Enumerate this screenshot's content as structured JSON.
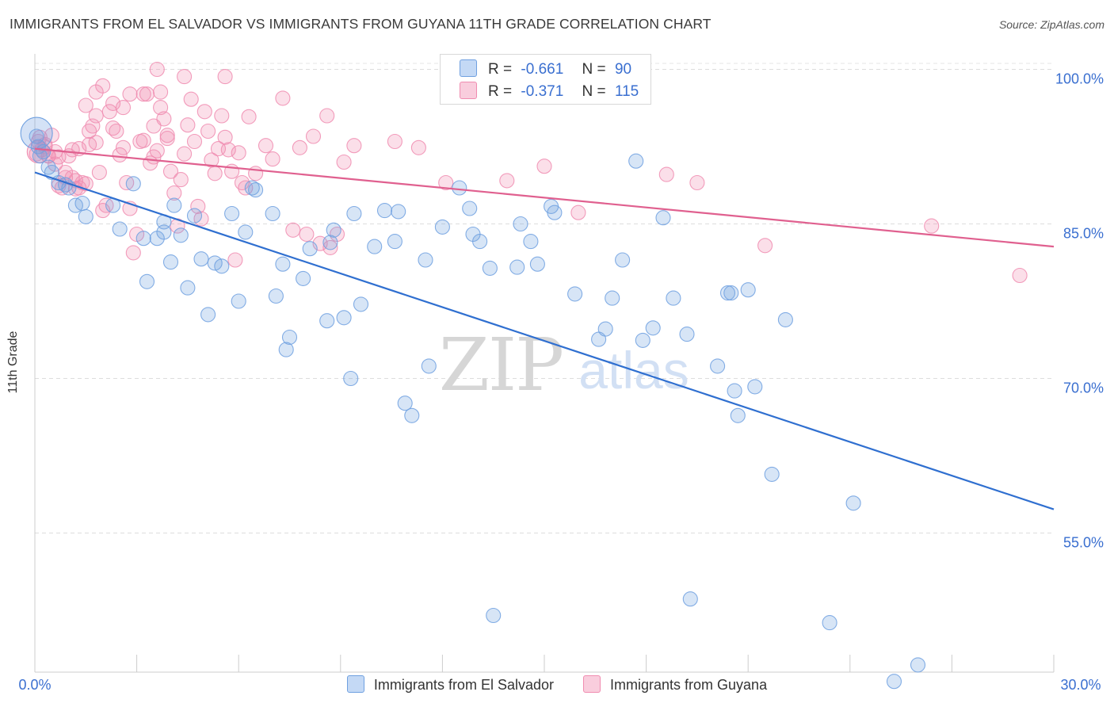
{
  "title": "IMMIGRANTS FROM EL SALVADOR VS IMMIGRANTS FROM GUYANA 11TH GRADE CORRELATION CHART",
  "source": "Source: ZipAtlas.com",
  "watermark": {
    "zip": "ZIP",
    "atlas": "atlas"
  },
  "legend": {
    "r_label": "R =",
    "n_label": "N =",
    "rows": [
      {
        "r": "-0.661",
        "n": "90",
        "color": "#6fa0e0"
      },
      {
        "r": "-0.371",
        "n": "115",
        "color": "#f08cb0"
      }
    ]
  },
  "bottom_legend": [
    "Immigrants from El Salvador",
    "Immigrants from Guyana"
  ],
  "colors": {
    "blue": "#6fa0e0",
    "blue_line": "#2f6fd0",
    "pink": "#f08cb0",
    "pink_line": "#e0608f",
    "axis_text": "#3a6fd0"
  },
  "chart_data": {
    "type": "scatter",
    "title": "IMMIGRANTS FROM EL SALVADOR VS IMMIGRANTS FROM GUYANA 11TH GRADE CORRELATION CHART",
    "xlabel": "",
    "ylabel": "11th Grade",
    "xlim": [
      0,
      30
    ],
    "ylim": [
      41.5,
      101.5
    ],
    "x_tick_labels": [
      "0.0%",
      "30.0%"
    ],
    "y_ticks": [
      55,
      70,
      85,
      100
    ],
    "y_tick_labels": [
      "55.0%",
      "70.0%",
      "85.0%",
      "100.0%"
    ],
    "grid": "horizontal dashed",
    "legend_position": "top-center",
    "series": [
      {
        "name": "Immigrants from El Salvador",
        "r": -0.661,
        "n": 90,
        "trend": [
          [
            0,
            90.0
          ],
          [
            30,
            57.3
          ]
        ],
        "points": [
          [
            0.05,
            93.5
          ],
          [
            0.1,
            92.5
          ],
          [
            0.15,
            91.6
          ],
          [
            0.25,
            92.0
          ],
          [
            0.4,
            90.5
          ],
          [
            0.5,
            90.0
          ],
          [
            0.7,
            89.0
          ],
          [
            0.9,
            88.8
          ],
          [
            1.0,
            88.5
          ],
          [
            1.2,
            86.8
          ],
          [
            1.4,
            87.0
          ],
          [
            1.5,
            85.7
          ],
          [
            2.3,
            86.8
          ],
          [
            2.5,
            84.5
          ],
          [
            2.9,
            88.9
          ],
          [
            3.6,
            83.6
          ],
          [
            3.2,
            83.6
          ],
          [
            3.3,
            79.4
          ],
          [
            3.8,
            84.2
          ],
          [
            3.8,
            85.2
          ],
          [
            4.0,
            81.3
          ],
          [
            4.1,
            86.8
          ],
          [
            4.3,
            83.9
          ],
          [
            4.5,
            78.8
          ],
          [
            4.7,
            85.8
          ],
          [
            4.9,
            81.6
          ],
          [
            5.1,
            76.2
          ],
          [
            5.3,
            81.2
          ],
          [
            5.5,
            80.9
          ],
          [
            5.8,
            86.0
          ],
          [
            6.0,
            77.5
          ],
          [
            6.2,
            84.2
          ],
          [
            6.4,
            88.5
          ],
          [
            6.5,
            88.3
          ],
          [
            7.0,
            86.0
          ],
          [
            7.1,
            78.0
          ],
          [
            7.3,
            81.1
          ],
          [
            7.4,
            72.8
          ],
          [
            7.5,
            74.0
          ],
          [
            7.9,
            79.7
          ],
          [
            8.1,
            82.6
          ],
          [
            8.6,
            75.6
          ],
          [
            8.8,
            84.4
          ],
          [
            8.7,
            83.2
          ],
          [
            9.1,
            75.9
          ],
          [
            9.3,
            70.0
          ],
          [
            9.4,
            86.0
          ],
          [
            9.6,
            77.2
          ],
          [
            10.0,
            82.8
          ],
          [
            10.3,
            86.3
          ],
          [
            10.6,
            83.3
          ],
          [
            10.7,
            86.2
          ],
          [
            10.9,
            67.6
          ],
          [
            11.1,
            66.4
          ],
          [
            11.5,
            81.5
          ],
          [
            11.6,
            71.2
          ],
          [
            12.0,
            84.7
          ],
          [
            12.5,
            88.5
          ],
          [
            12.8,
            86.5
          ],
          [
            12.9,
            84.0
          ],
          [
            13.1,
            83.3
          ],
          [
            13.4,
            80.7
          ],
          [
            13.5,
            47.0
          ],
          [
            14.2,
            80.8
          ],
          [
            14.3,
            85.0
          ],
          [
            14.6,
            83.3
          ],
          [
            14.8,
            81.1
          ],
          [
            15.2,
            86.7
          ],
          [
            15.3,
            86.1
          ],
          [
            15.9,
            78.2
          ],
          [
            16.6,
            73.8
          ],
          [
            16.8,
            74.8
          ],
          [
            17.0,
            77.8
          ],
          [
            17.3,
            81.5
          ],
          [
            17.7,
            91.1
          ],
          [
            17.9,
            73.7
          ],
          [
            18.2,
            74.9
          ],
          [
            18.5,
            85.6
          ],
          [
            18.8,
            77.8
          ],
          [
            19.2,
            74.3
          ],
          [
            19.3,
            48.6
          ],
          [
            20.1,
            71.2
          ],
          [
            20.4,
            78.3
          ],
          [
            20.5,
            78.3
          ],
          [
            20.6,
            68.8
          ],
          [
            20.7,
            66.4
          ],
          [
            21.0,
            78.6
          ],
          [
            21.2,
            69.2
          ],
          [
            21.7,
            60.7
          ],
          [
            22.1,
            75.7
          ],
          [
            23.4,
            46.3
          ],
          [
            24.1,
            57.9
          ],
          [
            25.3,
            40.6
          ],
          [
            26.0,
            42.2
          ]
        ]
      },
      {
        "name": "Immigrants from Guyana",
        "r": -0.371,
        "n": 115,
        "trend": [
          [
            0,
            92.3
          ],
          [
            30,
            82.8
          ]
        ],
        "points": [
          [
            0.05,
            91.8
          ],
          [
            0.1,
            93.0
          ],
          [
            0.15,
            93.4
          ],
          [
            0.2,
            92.2
          ],
          [
            0.3,
            92.7
          ],
          [
            0.4,
            91.6
          ],
          [
            0.5,
            93.6
          ],
          [
            0.6,
            90.8
          ],
          [
            0.7,
            91.5
          ],
          [
            0.8,
            88.5
          ],
          [
            0.9,
            89.5
          ],
          [
            1.0,
            91.6
          ],
          [
            1.1,
            92.2
          ],
          [
            1.2,
            89.2
          ],
          [
            1.3,
            88.5
          ],
          [
            1.4,
            89.0
          ],
          [
            1.5,
            88.9
          ],
          [
            1.6,
            94.0
          ],
          [
            1.7,
            94.5
          ],
          [
            1.8,
            92.9
          ],
          [
            1.9,
            90.0
          ],
          [
            2.0,
            86.3
          ],
          [
            2.1,
            86.8
          ],
          [
            2.2,
            95.9
          ],
          [
            2.3,
            96.7
          ],
          [
            2.4,
            94.0
          ],
          [
            2.5,
            91.7
          ],
          [
            2.6,
            92.4
          ],
          [
            2.7,
            89.0
          ],
          [
            2.8,
            86.5
          ],
          [
            2.9,
            82.2
          ],
          [
            3.0,
            84.0
          ],
          [
            3.1,
            93.0
          ],
          [
            3.2,
            93.1
          ],
          [
            3.3,
            97.6
          ],
          [
            3.4,
            90.9
          ],
          [
            3.5,
            94.5
          ],
          [
            3.6,
            92.1
          ],
          [
            3.7,
            96.3
          ],
          [
            3.8,
            95.2
          ],
          [
            3.9,
            93.6
          ],
          [
            4.0,
            90.1
          ],
          [
            4.1,
            88.0
          ],
          [
            4.2,
            84.8
          ],
          [
            4.3,
            89.3
          ],
          [
            4.4,
            91.8
          ],
          [
            4.5,
            94.6
          ],
          [
            4.6,
            97.1
          ],
          [
            4.7,
            93.0
          ],
          [
            4.8,
            86.7
          ],
          [
            4.9,
            85.5
          ],
          [
            5.0,
            95.9
          ],
          [
            5.1,
            94.0
          ],
          [
            5.2,
            91.2
          ],
          [
            5.3,
            89.9
          ],
          [
            5.4,
            92.3
          ],
          [
            5.5,
            95.5
          ],
          [
            5.6,
            93.4
          ],
          [
            5.7,
            92.2
          ],
          [
            5.8,
            90.1
          ],
          [
            5.9,
            81.5
          ],
          [
            6.0,
            91.9
          ],
          [
            6.1,
            89.0
          ],
          [
            6.2,
            88.5
          ],
          [
            6.3,
            95.4
          ],
          [
            6.5,
            89.9
          ],
          [
            6.8,
            92.6
          ],
          [
            7.0,
            91.3
          ],
          [
            7.3,
            97.2
          ],
          [
            7.6,
            84.4
          ],
          [
            7.8,
            92.4
          ],
          [
            8.0,
            84.0
          ],
          [
            8.2,
            93.5
          ],
          [
            8.4,
            83.1
          ],
          [
            8.6,
            95.5
          ],
          [
            8.7,
            82.7
          ],
          [
            8.9,
            84.0
          ],
          [
            9.1,
            91.0
          ],
          [
            9.4,
            92.6
          ],
          [
            1.8,
            97.8
          ],
          [
            2.6,
            96.3
          ],
          [
            0.3,
            92.5
          ],
          [
            0.6,
            92.0
          ],
          [
            0.4,
            91.6
          ],
          [
            1.3,
            92.3
          ],
          [
            1.6,
            92.7
          ],
          [
            3.5,
            91.5
          ],
          [
            4.4,
            99.3
          ],
          [
            5.6,
            99.3
          ],
          [
            3.6,
            100.0
          ],
          [
            2.0,
            98.4
          ],
          [
            2.8,
            97.6
          ],
          [
            3.2,
            97.6
          ],
          [
            3.7,
            97.8
          ],
          [
            3.9,
            93.3
          ],
          [
            1.5,
            96.5
          ],
          [
            1.8,
            95.5
          ],
          [
            2.3,
            94.3
          ],
          [
            0.9,
            90.0
          ],
          [
            1.1,
            89.5
          ],
          [
            0.7,
            88.7
          ],
          [
            1.2,
            88.4
          ],
          [
            13.9,
            89.2
          ],
          [
            16.0,
            86.1
          ],
          [
            18.6,
            89.8
          ],
          [
            21.5,
            82.9
          ],
          [
            26.4,
            84.8
          ],
          [
            29.0,
            80.0
          ],
          [
            10.6,
            93.0
          ],
          [
            11.3,
            92.4
          ],
          [
            12.1,
            89.0
          ],
          [
            15.0,
            90.6
          ],
          [
            19.5,
            89.0
          ]
        ]
      }
    ]
  }
}
